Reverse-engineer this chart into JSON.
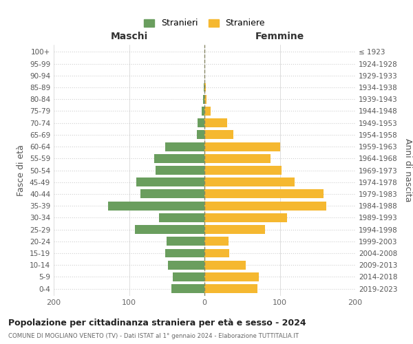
{
  "age_groups": [
    "0-4",
    "5-9",
    "10-14",
    "15-19",
    "20-24",
    "25-29",
    "30-34",
    "35-39",
    "40-44",
    "45-49",
    "50-54",
    "55-59",
    "60-64",
    "65-69",
    "70-74",
    "75-79",
    "80-84",
    "85-89",
    "90-94",
    "95-99",
    "100+"
  ],
  "birth_years": [
    "2019-2023",
    "2014-2018",
    "2009-2013",
    "2004-2008",
    "1999-2003",
    "1994-1998",
    "1989-1993",
    "1984-1988",
    "1979-1983",
    "1974-1978",
    "1969-1973",
    "1964-1968",
    "1959-1963",
    "1954-1958",
    "1949-1953",
    "1944-1948",
    "1939-1943",
    "1934-1938",
    "1929-1933",
    "1924-1928",
    "≤ 1923"
  ],
  "maschi": [
    44,
    42,
    48,
    52,
    50,
    92,
    60,
    128,
    85,
    90,
    65,
    67,
    52,
    10,
    9,
    4,
    2,
    1,
    0,
    0,
    0
  ],
  "femmine": [
    70,
    72,
    55,
    33,
    32,
    80,
    110,
    162,
    158,
    120,
    102,
    88,
    100,
    38,
    30,
    8,
    3,
    2,
    0,
    0,
    0
  ],
  "maschi_color": "#6a9e5e",
  "femmine_color": "#f5b830",
  "bg_color": "#ffffff",
  "grid_color": "#d0d0d0",
  "title": "Popolazione per cittadinanza straniera per età e sesso - 2024",
  "subtitle": "COMUNE DI MOGLIANO VENETO (TV) - Dati ISTAT al 1° gennaio 2024 - Elaborazione TUTTITALIA.IT",
  "left_label": "Maschi",
  "right_label": "Femmine",
  "ylabel_left": "Fasce di età",
  "ylabel_right": "Anni di nascita",
  "legend_maschi": "Stranieri",
  "legend_femmine": "Straniere",
  "xlim": 200,
  "bar_height": 0.75
}
